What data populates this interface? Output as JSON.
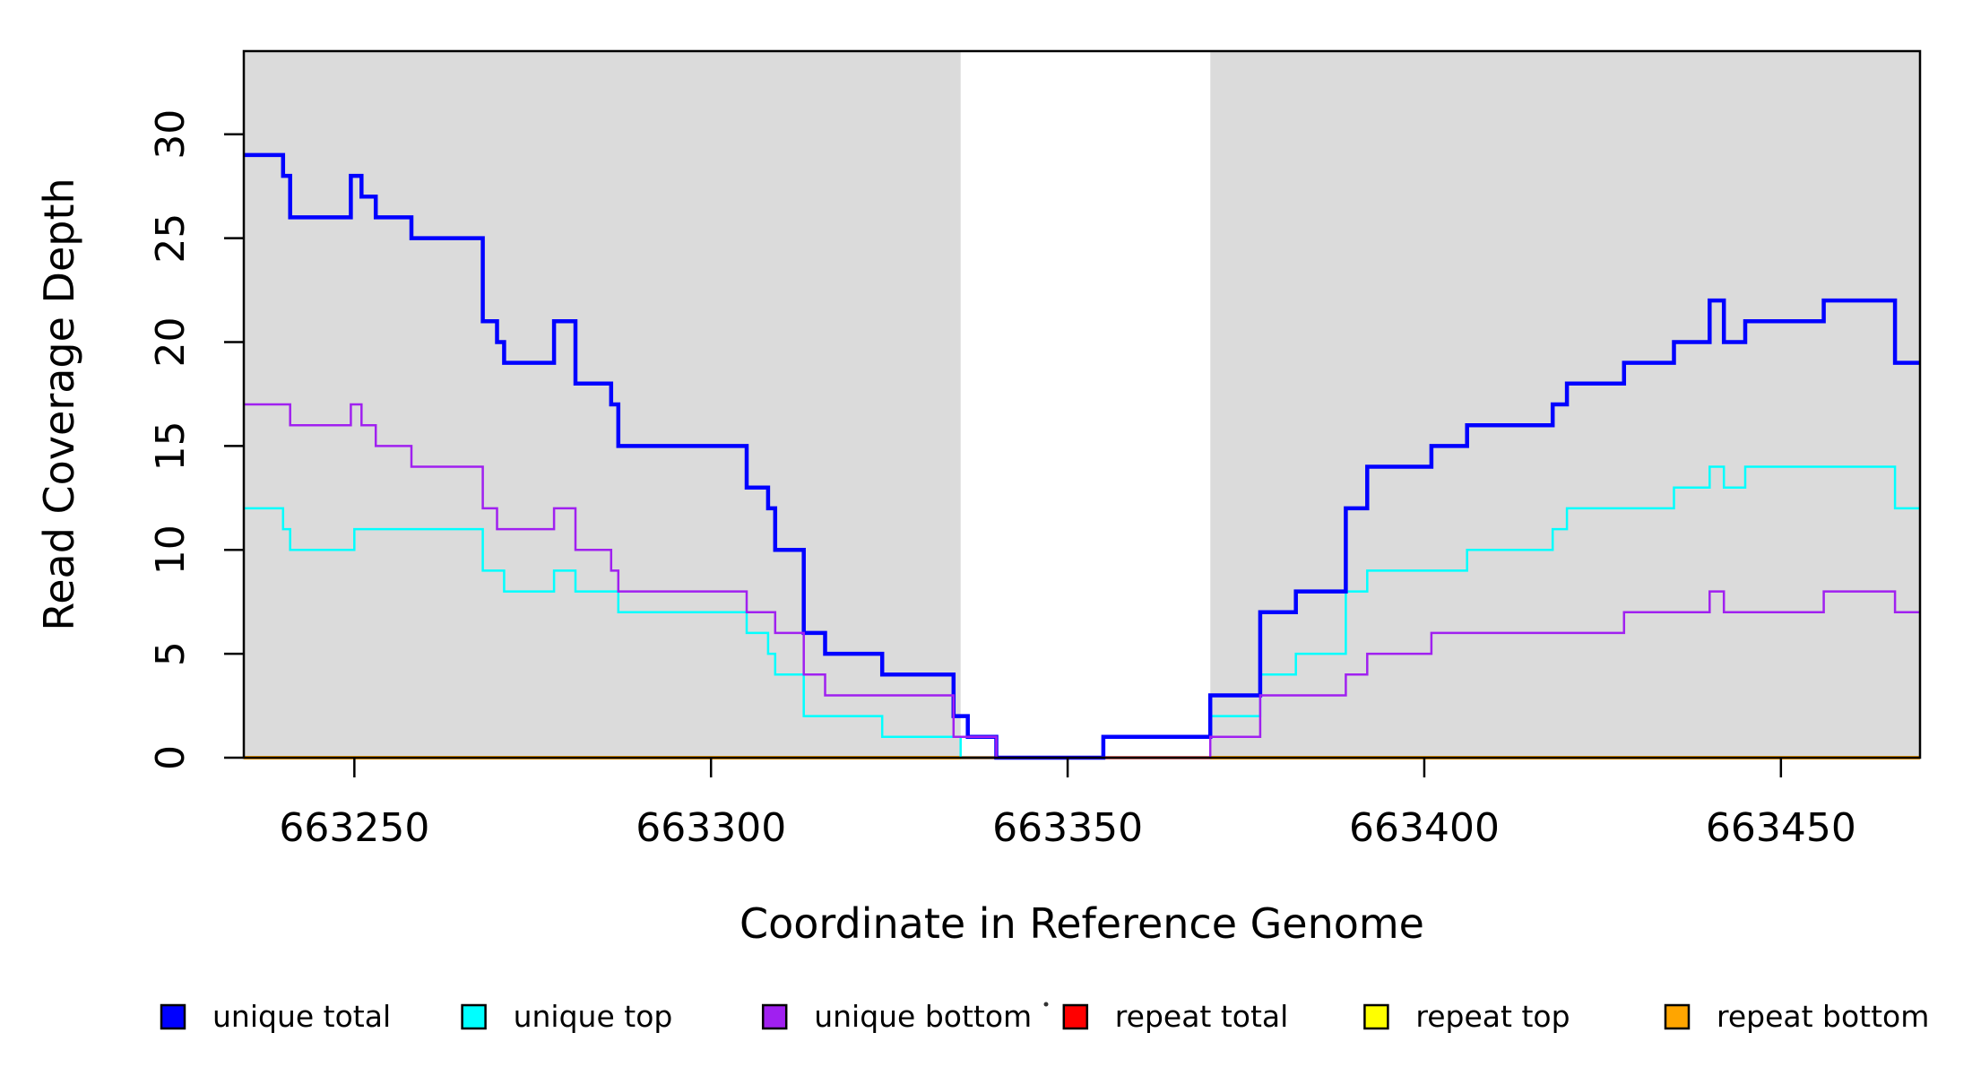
{
  "chart_data": {
    "type": "line",
    "subtype": "step-coverage-plot",
    "title": "",
    "xlabel": "Coordinate in Reference Genome",
    "ylabel": "Read Coverage Depth",
    "xlim": [
      663234.5,
      663469.5
    ],
    "ylim": [
      0,
      34
    ],
    "x_ticks": [
      663250,
      663300,
      663350,
      663400,
      663450
    ],
    "y_ticks": [
      0,
      5,
      10,
      15,
      20,
      25,
      30
    ],
    "grid": "off",
    "plot_background": "#ffffff",
    "shaded_regions": [
      {
        "x0": 663234.5,
        "x1": 663335,
        "color": "#DBDBDB",
        "meaning": "repeat region"
      },
      {
        "x0": 663370,
        "x1": 663469.5,
        "color": "#DBDBDB",
        "meaning": "repeat region"
      }
    ],
    "series": [
      {
        "name": "repeat total",
        "color": "#FF0000",
        "width": 3.5,
        "parts": [
          {
            "steps": [
              [
                663234.5,
                0
              ]
            ],
            "end": 663469.5
          }
        ]
      },
      {
        "name": "repeat top",
        "color": "#FFFF00",
        "width": 3,
        "parts": [
          {
            "steps": [
              [
                663234.5,
                0
              ]
            ],
            "end": 663469.5
          }
        ]
      },
      {
        "name": "repeat bottom",
        "color": "#FFA500",
        "width": 4,
        "parts": [
          {
            "steps": [
              [
                663234.5,
                0
              ]
            ],
            "end": 663335
          },
          {
            "steps": [
              [
                663370,
                0
              ]
            ],
            "end": 663469.5
          }
        ]
      },
      {
        "name": "unique top",
        "color": "#00FFFF",
        "width": 2.5,
        "parts": [
          {
            "steps": [
              [
                663234.5,
                12
              ],
              [
                663240,
                11
              ],
              [
                663241,
                10
              ],
              [
                663250,
                11
              ],
              [
                663268,
                9
              ],
              [
                663271,
                8
              ],
              [
                663278,
                9
              ],
              [
                663281,
                8
              ],
              [
                663287,
                7
              ],
              [
                663305,
                6
              ],
              [
                663308,
                5
              ],
              [
                663309,
                4
              ],
              [
                663313,
                2
              ],
              [
                663324,
                1
              ],
              [
                663335,
                0
              ],
              [
                663355,
                1
              ],
              [
                663370,
                2
              ],
              [
                663377,
                4
              ],
              [
                663382,
                5
              ],
              [
                663389,
                8
              ],
              [
                663392,
                9
              ],
              [
                663406,
                10
              ],
              [
                663418,
                11
              ],
              [
                663420,
                12
              ],
              [
                663435,
                13
              ],
              [
                663440,
                14
              ],
              [
                663442,
                13
              ],
              [
                663445,
                14
              ],
              [
                663466,
                12
              ]
            ],
            "end": 663469.5
          }
        ]
      },
      {
        "name": "unique total",
        "color": "#0000FF",
        "width": 4.5,
        "parts": [
          {
            "steps": [
              [
                663234.5,
                29
              ],
              [
                663240,
                28
              ],
              [
                663241,
                26
              ],
              [
                663249.5,
                28
              ],
              [
                663251,
                27
              ],
              [
                663253,
                26
              ],
              [
                663258,
                25
              ],
              [
                663268,
                21
              ],
              [
                663270,
                20
              ],
              [
                663271,
                19
              ],
              [
                663278,
                21
              ],
              [
                663281,
                18
              ],
              [
                663286,
                17
              ],
              [
                663287,
                15
              ],
              [
                663305,
                13
              ],
              [
                663308,
                12
              ],
              [
                663309,
                10
              ],
              [
                663313,
                6
              ],
              [
                663316,
                5
              ],
              [
                663324,
                4
              ],
              [
                663334,
                2
              ],
              [
                663336,
                1
              ],
              [
                663340,
                0
              ],
              [
                663355,
                1
              ],
              [
                663370,
                3
              ],
              [
                663377,
                7
              ],
              [
                663382,
                8
              ],
              [
                663389,
                12
              ],
              [
                663392,
                14
              ],
              [
                663401,
                15
              ],
              [
                663406,
                16
              ],
              [
                663418,
                17
              ],
              [
                663420,
                18
              ],
              [
                663428,
                19
              ],
              [
                663435,
                20
              ],
              [
                663440,
                22
              ],
              [
                663442,
                20
              ],
              [
                663445,
                21
              ],
              [
                663456,
                22
              ],
              [
                663466,
                19
              ]
            ],
            "end": 663469.5
          }
        ]
      },
      {
        "name": "unique bottom",
        "color": "#A020F0",
        "width": 2.5,
        "parts": [
          {
            "steps": [
              [
                663234.5,
                17
              ],
              [
                663241,
                16
              ],
              [
                663249.5,
                17
              ],
              [
                663251,
                16
              ],
              [
                663253,
                15
              ],
              [
                663258,
                14
              ],
              [
                663268,
                12
              ],
              [
                663270,
                11
              ],
              [
                663278,
                12
              ],
              [
                663281,
                10
              ],
              [
                663286,
                9
              ],
              [
                663287,
                8
              ],
              [
                663305,
                7
              ],
              [
                663309,
                6
              ],
              [
                663313,
                4
              ],
              [
                663316,
                3
              ],
              [
                663334,
                1
              ],
              [
                663340,
                0
              ],
              [
                663370,
                1
              ],
              [
                663377,
                3
              ],
              [
                663389,
                4
              ],
              [
                663392,
                5
              ],
              [
                663401,
                6
              ],
              [
                663428,
                7
              ],
              [
                663440,
                8
              ],
              [
                663442,
                7
              ],
              [
                663456,
                8
              ],
              [
                663466,
                7
              ]
            ],
            "end": 663469.5
          }
        ]
      }
    ],
    "legend": {
      "position": "bottom",
      "items": [
        {
          "label": "unique total",
          "color": "#0000FF"
        },
        {
          "label": "unique top",
          "color": "#00FFFF"
        },
        {
          "label": "unique bottom",
          "color": "#A020F0"
        },
        {
          "label": "repeat total",
          "color": "#FF0000"
        },
        {
          "label": "repeat top",
          "color": "#FFFF00"
        },
        {
          "label": "repeat bottom",
          "color": "#FFA500"
        }
      ]
    },
    "colors": {
      "axis": "#000000",
      "plot_border": "#000000",
      "shaded_region": "#DBDBDB"
    }
  }
}
